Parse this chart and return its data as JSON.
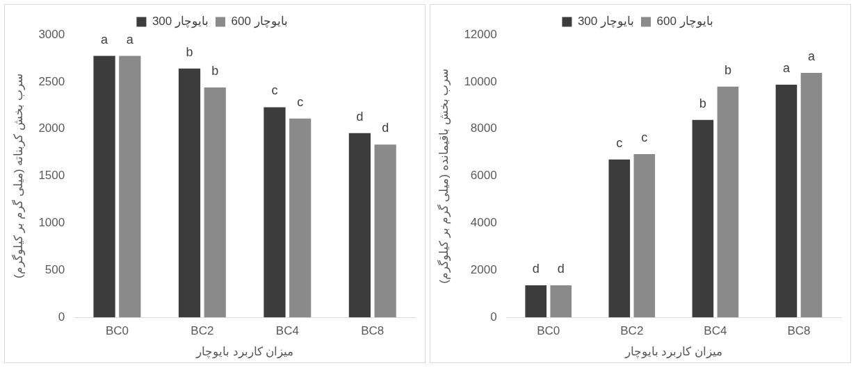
{
  "chart_data": [
    {
      "type": "bar",
      "categories": [
        "BC0",
        "BC2",
        "BC4",
        "BC8"
      ],
      "xlabel": "میزان کاربرد بایوچار",
      "ylabel": "سرب بخش کربناته (میلی گرم بر کیلوگرم)",
      "series": [
        {
          "name": "بایوچار 300",
          "color": "#3c3c3c",
          "values": [
            2775,
            2640,
            2230,
            1955
          ]
        },
        {
          "name": "بایوچار 600",
          "color": "#8a8a8a",
          "values": [
            2775,
            2440,
            2110,
            1835
          ]
        }
      ],
      "ylim": [
        0,
        3000
      ],
      "yticks": [
        0,
        500,
        1000,
        1500,
        2000,
        2500,
        3000
      ],
      "grid": false,
      "legend": "top",
      "annotations": [
        {
          "text": "a",
          "x": "BC0",
          "y": 2775
        },
        {
          "text": "a",
          "x": "BC0",
          "y": 2775
        },
        {
          "text": "b",
          "x": "BC2",
          "y": 2640
        },
        {
          "text": "b",
          "x": "BC2",
          "y": 2440
        },
        {
          "text": "c",
          "x": "BC4",
          "y": 2230
        },
        {
          "text": "c",
          "x": "BC4",
          "y": 2110
        },
        {
          "text": "d",
          "x": "BC8",
          "y": 1955
        },
        {
          "text": "d",
          "x": "BC8",
          "y": 1835
        }
      ]
    },
    {
      "type": "bar",
      "categories": [
        "BC0",
        "BC2",
        "BC4",
        "BC8"
      ],
      "xlabel": "میزان کاربرد بایوچار",
      "ylabel": "سرب بخش باقیمانده (میلی گرم بر کیلوگرم)",
      "series": [
        {
          "name": "بایوچار 300",
          "color": "#3c3c3c",
          "values": [
            1360,
            6700,
            8380,
            9880
          ]
        },
        {
          "name": "بایوچار 600",
          "color": "#8a8a8a",
          "values": [
            1360,
            6930,
            9800,
            10380
          ]
        }
      ],
      "ylim": [
        0,
        12000
      ],
      "yticks": [
        0,
        2000,
        4000,
        6000,
        8000,
        10000,
        12000
      ],
      "grid": false,
      "legend": "top",
      "annotations": [
        {
          "text": "d",
          "x": "BC0",
          "y": 1360
        },
        {
          "text": "d",
          "x": "BC0",
          "y": 1360
        },
        {
          "text": "c",
          "x": "BC2",
          "y": 6700
        },
        {
          "text": "c",
          "x": "BC2",
          "y": 6930
        },
        {
          "text": "b",
          "x": "BC4",
          "y": 8380
        },
        {
          "text": "b",
          "x": "BC4",
          "y": 9800
        },
        {
          "text": "a",
          "x": "BC8",
          "y": 9880
        },
        {
          "text": "a",
          "x": "BC8",
          "y": 10380
        }
      ]
    }
  ]
}
